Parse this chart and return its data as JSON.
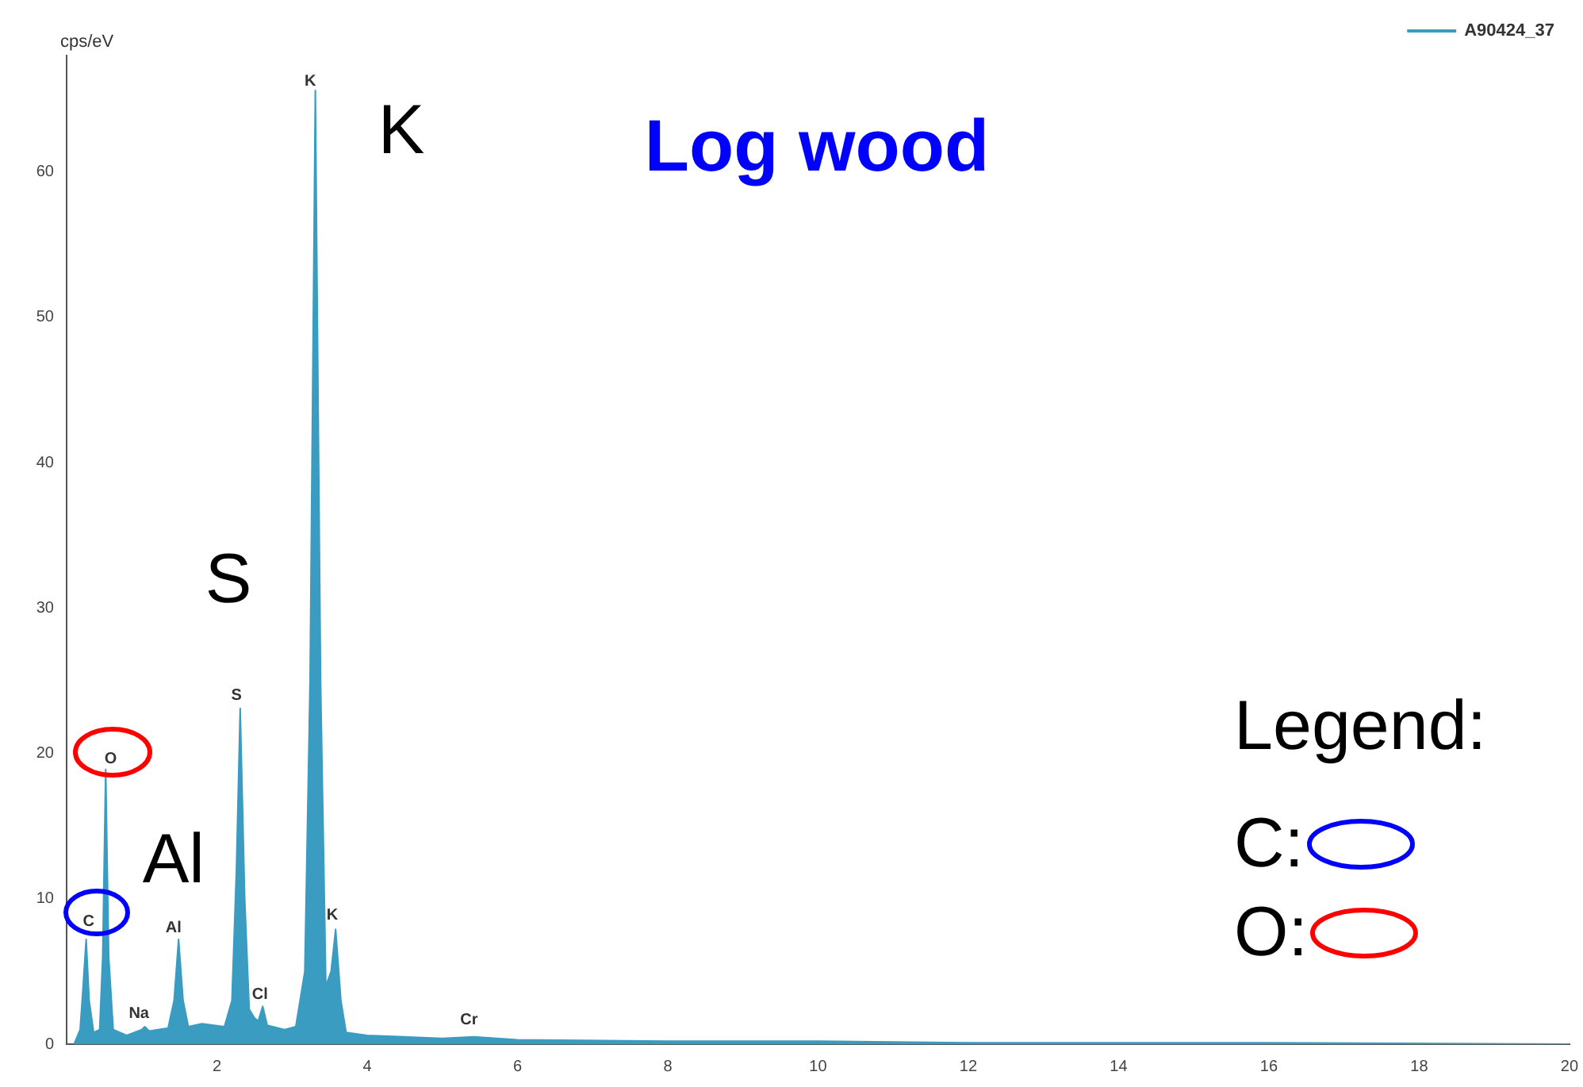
{
  "chart_data": {
    "type": "area",
    "title": "Log wood",
    "ylabel": "cps/eV",
    "xlim": [
      0,
      20
    ],
    "xticks": [
      2,
      4,
      6,
      8,
      10,
      12,
      14,
      16,
      18,
      20
    ],
    "ylim": [
      0,
      68
    ],
    "yticks": [
      0,
      10,
      20,
      30,
      40,
      50,
      60
    ],
    "grid": false,
    "legend": "top right",
    "marker": "none",
    "series": [
      {
        "name": "A90424_37",
        "color": "#3a9cc0",
        "x": [
          0.1,
          0.18,
          0.22,
          0.26,
          0.3,
          0.36,
          0.44,
          0.48,
          0.52,
          0.56,
          0.62,
          0.8,
          1.0,
          1.04,
          1.1,
          1.35,
          1.43,
          1.49,
          1.55,
          1.62,
          1.8,
          2.1,
          2.2,
          2.26,
          2.31,
          2.37,
          2.43,
          2.5,
          2.55,
          2.61,
          2.67,
          2.9,
          3.05,
          3.17,
          3.24,
          3.31,
          3.38,
          3.45,
          3.52,
          3.58,
          3.65,
          3.72,
          4.0,
          5.0,
          5.42,
          6.0,
          8,
          10,
          12,
          14,
          16,
          20
        ],
        "values": [
          0,
          1,
          4,
          7.2,
          3,
          0.8,
          1,
          6,
          18.9,
          6,
          1,
          0.6,
          1,
          1.2,
          0.9,
          1.1,
          3,
          7.2,
          3,
          1.2,
          1.4,
          1.2,
          3,
          12,
          23.1,
          10,
          2.4,
          1.8,
          1.6,
          2.6,
          1.3,
          1.0,
          1.2,
          5,
          25,
          65.6,
          25,
          4,
          5,
          7.9,
          3,
          0.8,
          0.6,
          0.4,
          0.5,
          0.3,
          0.2,
          0.2,
          0.1,
          0.1,
          0.1,
          0
        ]
      }
    ],
    "annotations": [
      "C",
      "O",
      "Na",
      "Al",
      "S",
      "Cl",
      "K",
      "K",
      "Cr",
      "K",
      "S",
      "Al",
      "Legend:",
      "C:",
      "O:"
    ]
  }
}
